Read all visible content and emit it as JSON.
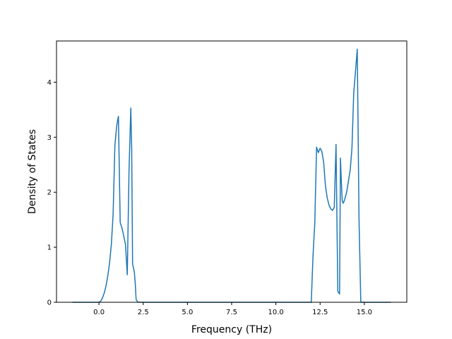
{
  "chart_data": {
    "type": "line",
    "title": "",
    "xlabel": "Frequency (THz)",
    "ylabel": "Density of States",
    "xlim": [
      -2.4,
      17.4
    ],
    "ylim": [
      0,
      4.75
    ],
    "xticks": [
      0.0,
      2.5,
      5.0,
      7.5,
      10.0,
      12.5,
      15.0
    ],
    "xtick_labels": [
      "0.0",
      "2.5",
      "5.0",
      "7.5",
      "10.0",
      "12.5",
      "15.0"
    ],
    "yticks": [
      0,
      1,
      2,
      3,
      4
    ],
    "ytick_labels": [
      "0",
      "1",
      "2",
      "3",
      "4"
    ],
    "grid": false,
    "legend": "none",
    "series": [
      {
        "color": "#1f77b4",
        "x": [
          -1.5,
          -0.5,
          0.0,
          0.1,
          0.2,
          0.3,
          0.4,
          0.5,
          0.6,
          0.7,
          0.8,
          0.9,
          1.0,
          1.05,
          1.1,
          1.2,
          1.3,
          1.35,
          1.5,
          1.6,
          1.7,
          1.8,
          1.85,
          1.9,
          2.0,
          2.05,
          2.1,
          2.2,
          2.3,
          2.4,
          2.5,
          3.0,
          5.0,
          8.0,
          10.0,
          12.0,
          12.1,
          12.2,
          12.3,
          12.4,
          12.5,
          12.6,
          12.7,
          12.8,
          12.9,
          13.0,
          13.1,
          13.2,
          13.3,
          13.4,
          13.5,
          13.6,
          13.65,
          13.7,
          13.75,
          13.8,
          13.85,
          13.9,
          14.0,
          14.1,
          14.2,
          14.3,
          14.4,
          14.5,
          14.6,
          14.7,
          14.8,
          14.85,
          14.9,
          14.95,
          15.0,
          16.5
        ],
        "y": [
          0,
          0,
          0,
          0.02,
          0.08,
          0.17,
          0.3,
          0.48,
          0.72,
          1.05,
          1.6,
          2.85,
          3.2,
          3.3,
          3.38,
          1.45,
          1.35,
          1.28,
          1.05,
          0.5,
          2.4,
          3.53,
          2.8,
          0.7,
          0.55,
          0.35,
          0.05,
          0.0,
          0,
          0,
          0,
          0,
          0,
          0,
          0,
          0,
          0.85,
          1.45,
          2.82,
          2.72,
          2.8,
          2.74,
          2.55,
          2.12,
          1.9,
          1.77,
          1.7,
          1.67,
          1.72,
          2.87,
          0.2,
          0.15,
          2.62,
          2.2,
          1.85,
          1.8,
          1.83,
          1.88,
          2.0,
          2.2,
          2.4,
          2.8,
          3.8,
          4.2,
          4.6,
          1.5,
          0,
          0,
          0,
          0,
          0,
          0
        ]
      }
    ]
  }
}
